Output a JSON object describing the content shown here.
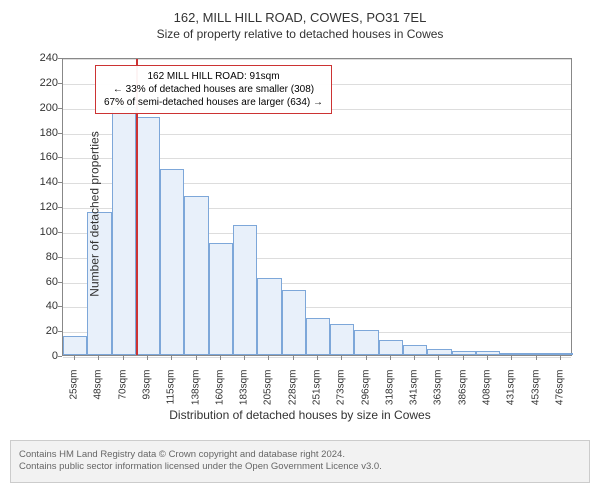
{
  "title_main": "162, MILL HILL ROAD, COWES, PO31 7EL",
  "title_sub": "Size of property relative to detached houses in Cowes",
  "chart": {
    "type": "histogram",
    "categories": [
      "25sqm",
      "48sqm",
      "70sqm",
      "93sqm",
      "115sqm",
      "138sqm",
      "160sqm",
      "183sqm",
      "205sqm",
      "228sqm",
      "251sqm",
      "273sqm",
      "296sqm",
      "318sqm",
      "341sqm",
      "363sqm",
      "386sqm",
      "408sqm",
      "431sqm",
      "453sqm",
      "476sqm"
    ],
    "values": [
      15,
      115,
      200,
      192,
      150,
      128,
      90,
      105,
      62,
      52,
      30,
      25,
      20,
      12,
      8,
      5,
      3,
      3,
      2,
      2,
      2
    ],
    "ylim": [
      0,
      240
    ],
    "yticks": [
      0,
      20,
      40,
      60,
      80,
      100,
      120,
      140,
      160,
      180,
      200,
      220,
      240
    ],
    "ylabel": "Number of detached properties",
    "xlabel": "Distribution of detached houses by size in Cowes",
    "bar_fill": "#e8f0fa",
    "bar_stroke": "#7da7d9",
    "grid_color": "#dddddd",
    "background_color": "#ffffff",
    "reference_line": {
      "position_index": 3,
      "color": "#cc3333"
    },
    "annotation": {
      "lines": [
        "162 MILL HILL ROAD: 91sqm",
        "← 33% of detached houses are smaller (308)",
        "67% of semi-detached houses are larger (634) →"
      ],
      "border_color": "#cc3333"
    }
  },
  "footer": {
    "line1": "Contains HM Land Registry data © Crown copyright and database right 2024.",
    "line2": "Contains public sector information licensed under the Open Government Licence v3.0."
  }
}
